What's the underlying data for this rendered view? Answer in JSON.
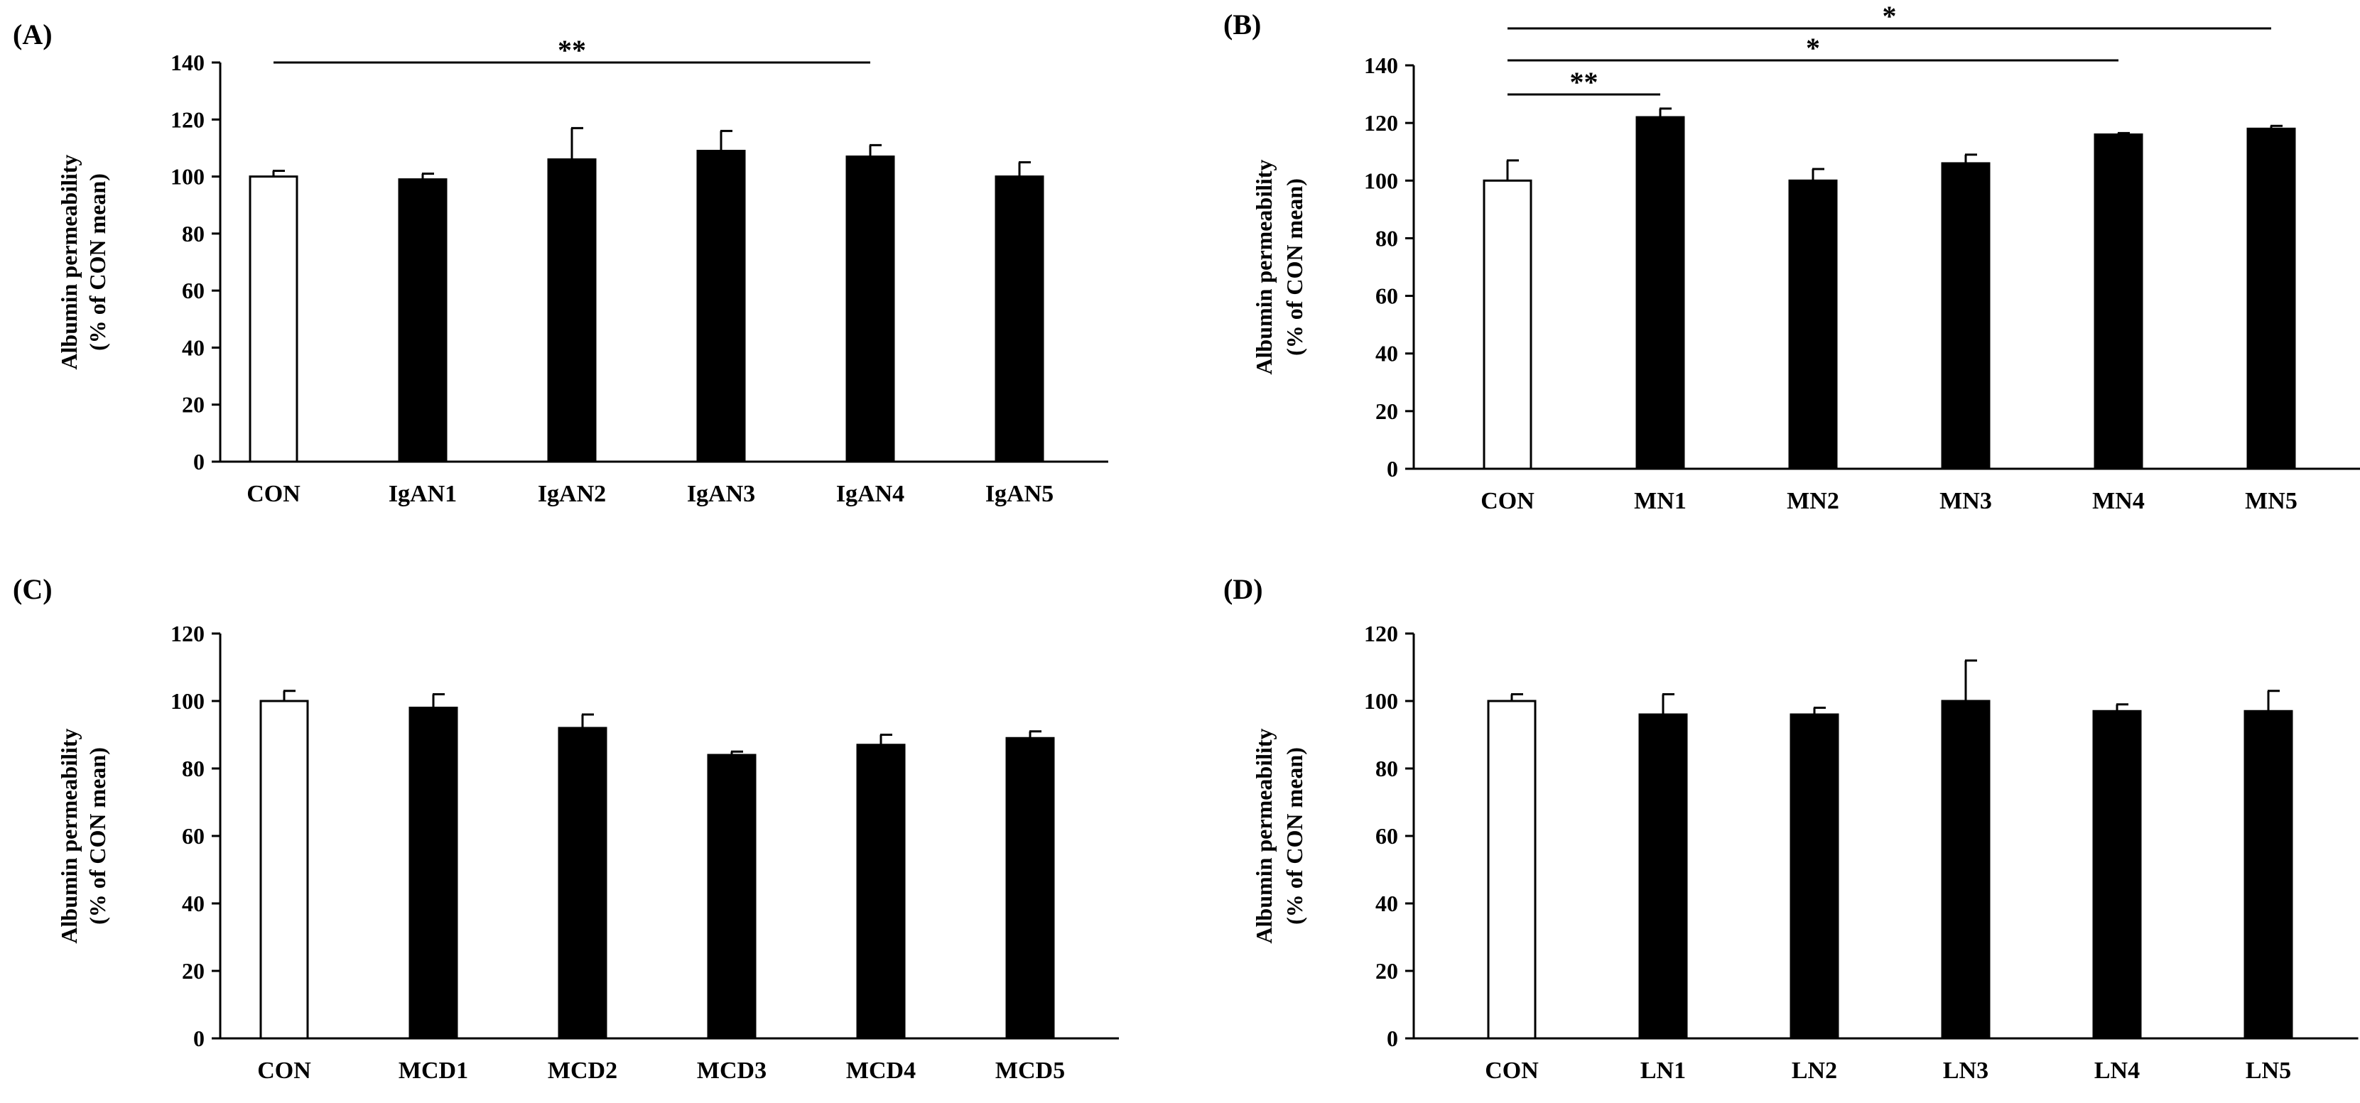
{
  "chart_data": [
    {
      "panel_label": "(A)",
      "type": "bar",
      "ylabel_line1": "Albumin permeability",
      "ylabel_line2": "(% of CON mean)",
      "ylim": [
        0,
        140
      ],
      "yticks": [
        0,
        20,
        40,
        60,
        80,
        100,
        120,
        140
      ],
      "categories": [
        "CON",
        "IgAN1",
        "IgAN2",
        "IgAN3",
        "IgAN4",
        "IgAN5"
      ],
      "values": [
        100,
        99,
        106,
        109,
        107,
        100
      ],
      "errors": [
        2,
        2,
        11,
        7,
        4,
        5
      ],
      "fills": [
        "#ffffff",
        "#000000",
        "#000000",
        "#000000",
        "#000000",
        "#000000"
      ],
      "significance": [
        {
          "from": "CON",
          "to": "IgAN4",
          "label": "**"
        }
      ]
    },
    {
      "panel_label": "(B)",
      "type": "bar",
      "ylabel_line1": "Albumin permeability",
      "ylabel_line2": "(% of CON mean)",
      "ylim": [
        0,
        140
      ],
      "yticks": [
        0,
        20,
        40,
        60,
        80,
        100,
        120,
        140
      ],
      "categories": [
        "CON",
        "MN1",
        "MN2",
        "MN3",
        "MN4",
        "MN5"
      ],
      "values": [
        100,
        122,
        100,
        106,
        116,
        118
      ],
      "errors": [
        7,
        3,
        4,
        3,
        0.5,
        1
      ],
      "fills": [
        "#ffffff",
        "#000000",
        "#000000",
        "#000000",
        "#000000",
        "#000000"
      ],
      "significance": [
        {
          "from": "CON",
          "to": "MN5",
          "label": "*"
        },
        {
          "from": "CON",
          "to": "MN4",
          "label": "*"
        },
        {
          "from": "CON",
          "to": "MN1",
          "label": "**"
        }
      ]
    },
    {
      "panel_label": "(C)",
      "type": "bar",
      "ylabel_line1": "Albumin permeability",
      "ylabel_line2": "(% of CON mean)",
      "ylim": [
        0,
        120
      ],
      "yticks": [
        0,
        20,
        40,
        60,
        80,
        100,
        120
      ],
      "categories": [
        "CON",
        "MCD1",
        "MCD2",
        "MCD3",
        "MCD4",
        "MCD5"
      ],
      "values": [
        100,
        98,
        92,
        84,
        87,
        89
      ],
      "errors": [
        3,
        4,
        4,
        1,
        3,
        2
      ],
      "fills": [
        "#ffffff",
        "#000000",
        "#000000",
        "#000000",
        "#000000",
        "#000000"
      ],
      "significance": []
    },
    {
      "panel_label": "(D)",
      "type": "bar",
      "ylabel_line1": "Albumin permeability",
      "ylabel_line2": "(% of CON mean)",
      "ylim": [
        0,
        120
      ],
      "yticks": [
        0,
        20,
        40,
        60,
        80,
        100,
        120
      ],
      "categories": [
        "CON",
        "LN1",
        "LN2",
        "LN3",
        "LN4",
        "LN5"
      ],
      "values": [
        100,
        96,
        96,
        100,
        97,
        97
      ],
      "errors": [
        2,
        6,
        2,
        12,
        2,
        6
      ],
      "fills": [
        "#ffffff",
        "#000000",
        "#000000",
        "#000000",
        "#000000",
        "#000000"
      ],
      "significance": []
    }
  ]
}
